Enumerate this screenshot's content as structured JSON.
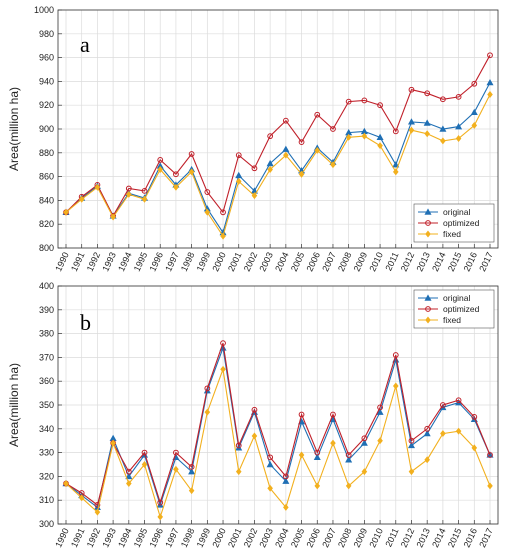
{
  "chart_data": [
    {
      "type": "line",
      "panel_label": "a",
      "ylabel": "Area(million ha)",
      "xlabel": "",
      "ylim": [
        800,
        1000
      ],
      "yticks": [
        800,
        820,
        840,
        860,
        880,
        900,
        920,
        940,
        960,
        980,
        1000
      ],
      "x": [
        "1990",
        "1991",
        "1992",
        "1993",
        "1994",
        "1995",
        "1996",
        "1997",
        "1998",
        "1999",
        "2000",
        "2001",
        "2002",
        "2003",
        "2004",
        "2005",
        "2006",
        "2007",
        "2008",
        "2009",
        "2010",
        "2011",
        "2012",
        "2013",
        "2014",
        "2015",
        "2016",
        "2017"
      ],
      "grid": true,
      "legend_position": "bottom-right",
      "series": [
        {
          "name": "original",
          "color": "#1f6fb4",
          "marker": "triangle",
          "values": [
            830,
            842,
            852,
            827,
            846,
            842,
            869,
            853,
            866,
            833,
            813,
            861,
            848,
            871,
            883,
            865,
            884,
            872,
            897,
            898,
            893,
            870,
            906,
            905,
            900,
            902,
            914,
            939
          ]
        },
        {
          "name": "optimized",
          "color": "#c0202a",
          "marker": "circle",
          "values": [
            830,
            843,
            853,
            827,
            850,
            848,
            874,
            862,
            879,
            847,
            830,
            878,
            867,
            894,
            907,
            889,
            912,
            900,
            923,
            924,
            920,
            898,
            933,
            930,
            925,
            927,
            938,
            962
          ]
        },
        {
          "name": "fixed",
          "color": "#f2b01e",
          "marker": "diamond",
          "values": [
            830,
            841,
            851,
            826,
            845,
            841,
            866,
            851,
            864,
            830,
            810,
            856,
            844,
            866,
            878,
            862,
            882,
            870,
            893,
            894,
            886,
            864,
            899,
            896,
            890,
            892,
            903,
            929
          ]
        }
      ]
    },
    {
      "type": "line",
      "panel_label": "b",
      "ylabel": "Area(million ha)",
      "xlabel": "",
      "ylim": [
        300,
        400
      ],
      "yticks": [
        300,
        310,
        320,
        330,
        340,
        350,
        360,
        370,
        380,
        390,
        400
      ],
      "x": [
        "1990",
        "1991",
        "1992",
        "1993",
        "1994",
        "1995",
        "1996",
        "1997",
        "1998",
        "1999",
        "2000",
        "2001",
        "2002",
        "2003",
        "2004",
        "2005",
        "2006",
        "2007",
        "2008",
        "2009",
        "2010",
        "2011",
        "2012",
        "2013",
        "2014",
        "2015",
        "2016",
        "2017"
      ],
      "grid": true,
      "legend_position": "top-right",
      "series": [
        {
          "name": "original",
          "color": "#1f6fb4",
          "marker": "triangle",
          "values": [
            317,
            312,
            307,
            336,
            320,
            329,
            308,
            328,
            322,
            356,
            374,
            332,
            347,
            325,
            318,
            343,
            328,
            344,
            327,
            334,
            347,
            369,
            333,
            338,
            349,
            351,
            344,
            329
          ]
        },
        {
          "name": "optimized",
          "color": "#c0202a",
          "marker": "circle",
          "values": [
            317,
            313,
            308,
            334,
            322,
            330,
            309,
            330,
            324,
            357,
            376,
            333,
            348,
            328,
            320,
            346,
            330,
            346,
            329,
            336,
            349,
            371,
            335,
            340,
            350,
            352,
            345,
            329
          ]
        },
        {
          "name": "fixed",
          "color": "#f2b01e",
          "marker": "diamond",
          "values": [
            317,
            311,
            305,
            334,
            317,
            325,
            303,
            323,
            314,
            347,
            365,
            322,
            337,
            315,
            307,
            329,
            316,
            334,
            316,
            322,
            335,
            358,
            322,
            327,
            338,
            339,
            332,
            316
          ]
        }
      ]
    }
  ]
}
